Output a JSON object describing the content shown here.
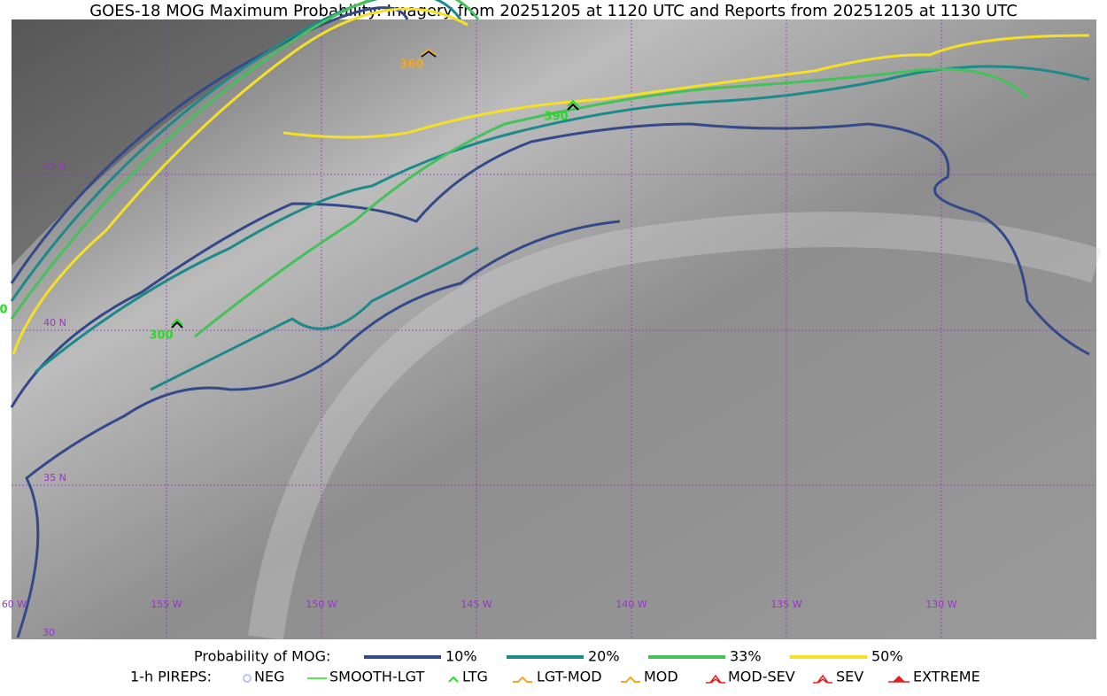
{
  "title": "GOES-18 MOG Maximum Probability: Imagery from 20251205 at 1120 UTC and Reports from 20251205 at 1130 UTC",
  "grid_labels": {
    "lat": [
      "45 N",
      "40 N",
      "35 N",
      "30"
    ],
    "lon": [
      "60 W",
      "155 W",
      "150 W",
      "145 W",
      "140 W",
      "135 W",
      "130 W"
    ]
  },
  "pireps": [
    "360",
    "390",
    "300",
    "0"
  ],
  "legend": {
    "probability": {
      "title": "Probability of MOG:",
      "items": [
        "10%",
        "20%",
        "33%",
        "50%"
      ]
    },
    "pireps": {
      "title": "1-h PIREPS:",
      "items": [
        "NEG",
        "SMOOTH-LGT",
        "LTG",
        "LGT-MOD",
        "MOD",
        "MOD-SEV",
        "SEV",
        "EXTREME"
      ]
    }
  }
}
